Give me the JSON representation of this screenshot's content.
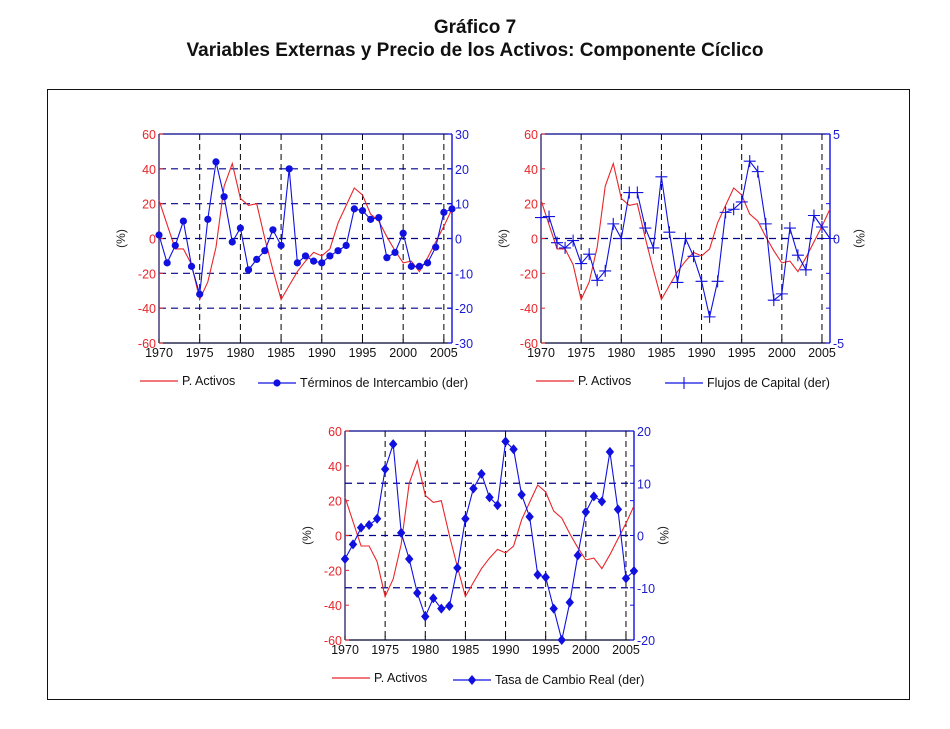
{
  "title": {
    "line1": "Gráfico 7",
    "line2": "Variables Externas y Precio de los Activos: Componente Cíclico"
  },
  "colors": {
    "left_series": "#e8262a",
    "right_series": "#1010e0",
    "left_axis_text": "#e8262a",
    "right_axis_text": "#1a1ad0",
    "vgrid": "#000000",
    "hgrid": "#00008b"
  },
  "chart_data": [
    {
      "type": "line",
      "title": "",
      "xlabel": "",
      "ylabel_left": "(%)",
      "ylabel_right": "",
      "x": [
        1970,
        1971,
        1972,
        1973,
        1974,
        1975,
        1976,
        1977,
        1978,
        1979,
        1980,
        1981,
        1982,
        1983,
        1984,
        1985,
        1986,
        1987,
        1988,
        1989,
        1990,
        1991,
        1992,
        1993,
        1994,
        1995,
        1996,
        1997,
        1998,
        1999,
        2000,
        2001,
        2002,
        2003,
        2004,
        2005,
        2006
      ],
      "xlim": [
        1970,
        2006
      ],
      "xticks": [
        1970,
        1975,
        1980,
        1985,
        1990,
        1995,
        2000,
        2005
      ],
      "ylim_left": [
        -60,
        60
      ],
      "yticks_left": [
        -60,
        -40,
        -20,
        0,
        20,
        40,
        60
      ],
      "ylim_right": [
        -30,
        30
      ],
      "yticks_right": [
        -30,
        -20,
        -10,
        0,
        10,
        20,
        30
      ],
      "hgrid_left_values": [
        -40,
        -20,
        0,
        20,
        40
      ],
      "series": [
        {
          "name": "P. Activos",
          "axis": "left",
          "marker": "none",
          "values": [
            22,
            8,
            -6,
            -6,
            -15,
            -35,
            -25,
            -5,
            30,
            43,
            23,
            19,
            20,
            0,
            -18,
            -35,
            -27,
            -19,
            -13,
            -8,
            -10,
            -6,
            9,
            19,
            29,
            25,
            14,
            10,
            1,
            -7,
            -14,
            -13,
            -19,
            -11,
            -2,
            7,
            17
          ]
        },
        {
          "name": "Términos de Intercambio (der)",
          "axis": "right",
          "marker": "circle",
          "values": [
            1,
            -7,
            -2,
            5,
            -8,
            -16,
            5.5,
            22,
            12,
            -1,
            3,
            -9,
            -6,
            -3.5,
            2.5,
            -2,
            20,
            -7,
            -5,
            -6.5,
            -7,
            -5,
            -3.5,
            -2,
            8.5,
            8,
            5.5,
            6,
            -5.5,
            -4,
            1.5,
            -8,
            -8,
            -7,
            -2.5,
            7.5,
            8.5
          ]
        }
      ],
      "legend": [
        "P. Activos",
        "Términos de Intercambio (der)"
      ],
      "legend_position": "bottom"
    },
    {
      "type": "line",
      "title": "",
      "xlabel": "",
      "ylabel_left": "(%)",
      "ylabel_right": "(%)",
      "x": [
        1970,
        1971,
        1972,
        1973,
        1974,
        1975,
        1976,
        1977,
        1978,
        1979,
        1980,
        1981,
        1982,
        1983,
        1984,
        1985,
        1986,
        1987,
        1988,
        1989,
        1990,
        1991,
        1992,
        1993,
        1994,
        1995,
        1996,
        1997,
        1998,
        1999,
        2000,
        2001,
        2002,
        2003,
        2004,
        2005,
        2006
      ],
      "xlim": [
        1970,
        2006
      ],
      "xticks": [
        1970,
        1975,
        1980,
        1985,
        1990,
        1995,
        2000,
        2005
      ],
      "ylim_left": [
        -60,
        60
      ],
      "yticks_left": [
        -60,
        -40,
        -20,
        0,
        20,
        40,
        60
      ],
      "ylim_right": [
        -5,
        5
      ],
      "yticks_right": [
        -5,
        0,
        5
      ],
      "hgrid_left_values": [
        0
      ],
      "series": [
        {
          "name": "P. Activos",
          "axis": "left",
          "marker": "none",
          "values": [
            22,
            8,
            -6,
            -6,
            -15,
            -35,
            -25,
            -5,
            30,
            43,
            23,
            19,
            20,
            0,
            -18,
            -35,
            -27,
            -19,
            -13,
            -8,
            -10,
            -6,
            9,
            19,
            29,
            25,
            14,
            10,
            1,
            -7,
            -14,
            -13,
            -19,
            -11,
            -2,
            7,
            17
          ]
        },
        {
          "name": "Flujos de Capital (der)",
          "axis": "right",
          "marker": "plus",
          "values": [
            1.0,
            1.05,
            -0.2,
            -0.45,
            -0.1,
            -1.2,
            -0.75,
            -2.0,
            -1.55,
            0.7,
            0,
            2.2,
            2.2,
            0.5,
            -0.45,
            2.95,
            0.3,
            -2.1,
            0,
            -0.85,
            -2.05,
            -3.75,
            -2.05,
            1.25,
            1.4,
            1.75,
            3.7,
            3.2,
            0.7,
            -2.95,
            -2.65,
            0.5,
            -0.8,
            -1.5,
            1.1,
            0.55,
            0
          ]
        }
      ],
      "legend": [
        "P. Activos",
        "Flujos de Capital (der)"
      ],
      "legend_position": "bottom"
    },
    {
      "type": "line",
      "title": "",
      "xlabel": "",
      "ylabel_left": "(%)",
      "ylabel_right": "(%)",
      "x": [
        1970,
        1971,
        1972,
        1973,
        1974,
        1975,
        1976,
        1977,
        1978,
        1979,
        1980,
        1981,
        1982,
        1983,
        1984,
        1985,
        1986,
        1987,
        1988,
        1989,
        1990,
        1991,
        1992,
        1993,
        1994,
        1995,
        1996,
        1997,
        1998,
        1999,
        2000,
        2001,
        2002,
        2003,
        2004,
        2005,
        2006
      ],
      "xlim": [
        1970,
        2006
      ],
      "xticks": [
        1970,
        1975,
        1980,
        1985,
        1990,
        1995,
        2000,
        2005
      ],
      "ylim_left": [
        -60,
        60
      ],
      "yticks_left": [
        -60,
        -40,
        -20,
        0,
        20,
        40,
        60
      ],
      "ylim_right": [
        -20,
        20
      ],
      "yticks_right": [
        -20,
        -10,
        0,
        10,
        20
      ],
      "hgrid_right_values": [
        -10,
        0,
        10
      ],
      "series": [
        {
          "name": "P. Activos",
          "axis": "left",
          "marker": "none",
          "values": [
            22,
            8,
            -6,
            -6,
            -15,
            -35,
            -25,
            -5,
            30,
            43,
            23,
            19,
            20,
            0,
            -18,
            -35,
            -27,
            -19,
            -13,
            -8,
            -10,
            -6,
            9,
            19,
            29,
            25,
            14,
            10,
            1,
            -7,
            -14,
            -13,
            -19,
            -11,
            -2,
            7,
            17
          ]
        },
        {
          "name": "Tasa de Cambio Real (der)",
          "axis": "right",
          "marker": "diamond",
          "values": [
            -4.5,
            -1.7,
            1.5,
            2,
            3.2,
            12.7,
            17.5,
            0.5,
            -4.5,
            -11,
            -15.5,
            -12,
            -14,
            -13.5,
            -6.2,
            3.2,
            9,
            11.8,
            7.3,
            5.8,
            18,
            16.5,
            7.8,
            3.6,
            -7.5,
            -8,
            -14,
            -20,
            -12.8,
            -3.8,
            4.5,
            7.5,
            6.5,
            16,
            5,
            -8.2,
            -6.8
          ]
        }
      ],
      "legend": [
        "P. Activos",
        "Tasa de Cambio Real (der)"
      ],
      "legend_position": "bottom"
    }
  ]
}
